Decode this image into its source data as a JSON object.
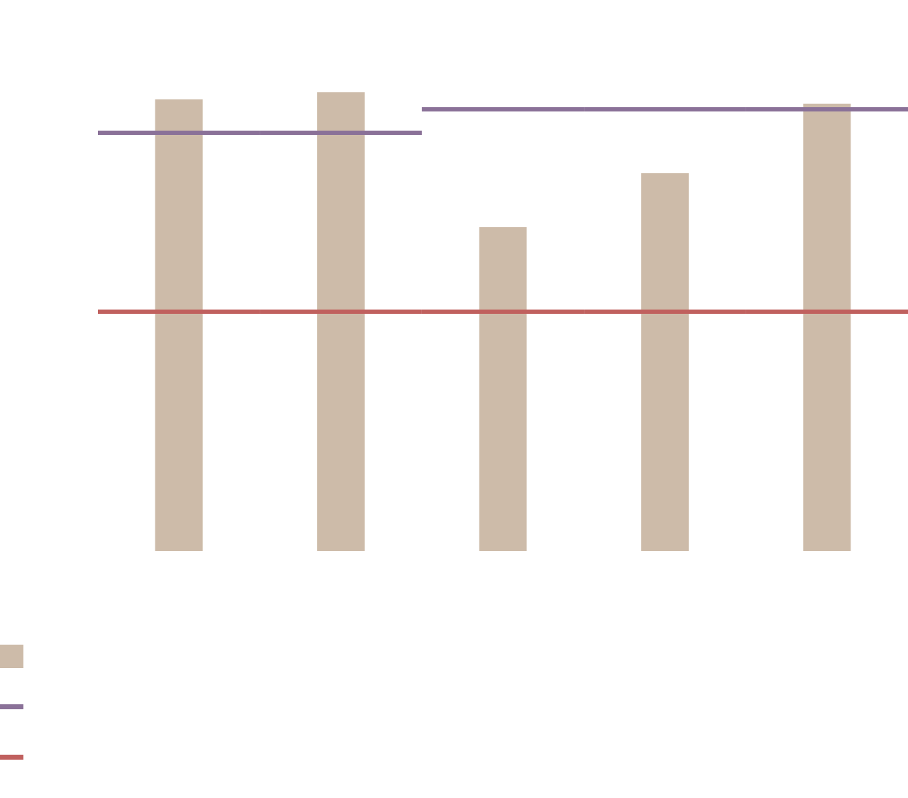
{
  "chart_data": {
    "type": "bar",
    "categories": [
      null,
      null,
      null,
      null,
      null
    ],
    "series": [
      {
        "type": "bar",
        "color": "#cdbba9",
        "values": [
          636,
          646,
          456,
          532,
          630
        ]
      },
      {
        "type": "step",
        "color": "#8a7198",
        "values": [
          589,
          589,
          622,
          622,
          622
        ]
      },
      {
        "type": "step",
        "color": "#c0605e",
        "values": [
          337,
          337,
          337,
          337,
          337
        ]
      }
    ],
    "ylim": [
      0,
      700
    ]
  }
}
